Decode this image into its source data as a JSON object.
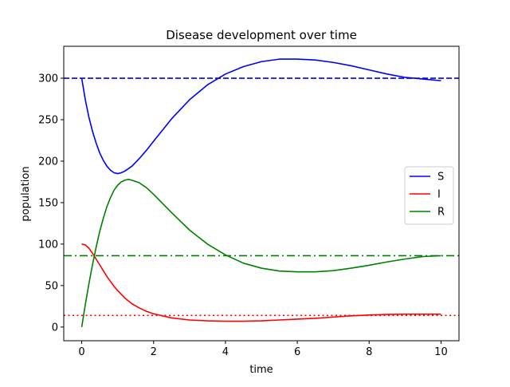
{
  "chart_data": {
    "type": "line",
    "title": "Disease development over time",
    "xlabel": "time",
    "ylabel": "population",
    "xlim": [
      -0.5,
      10.5
    ],
    "ylim": [
      -16.5,
      338.5
    ],
    "xticks": [
      0,
      2,
      4,
      6,
      8,
      10
    ],
    "yticks": [
      0,
      50,
      100,
      150,
      200,
      250,
      300
    ],
    "grid": false,
    "legend_position": "center-right",
    "series": [
      {
        "name": "S",
        "color": "#0000ff",
        "style": "solid",
        "x": [
          0,
          0.1,
          0.2,
          0.3,
          0.4,
          0.5,
          0.6,
          0.7,
          0.8,
          0.9,
          1.0,
          1.1,
          1.2,
          1.4,
          1.6,
          1.8,
          2.0,
          2.5,
          3.0,
          3.5,
          4.0,
          4.5,
          5.0,
          5.5,
          6.0,
          6.5,
          7.0,
          7.5,
          8.0,
          8.5,
          9.0,
          9.5,
          10.0
        ],
        "y": [
          300,
          274,
          253,
          236,
          222,
          210,
          201,
          194,
          189,
          186,
          185,
          186,
          188,
          194,
          203,
          213,
          224,
          251,
          274,
          292,
          305,
          314,
          320,
          323,
          323,
          322,
          319,
          315,
          310,
          305,
          301,
          299,
          297
        ]
      },
      {
        "name": "I",
        "color": "#ff0000",
        "style": "solid",
        "x": [
          0,
          0.1,
          0.2,
          0.3,
          0.4,
          0.5,
          0.6,
          0.7,
          0.8,
          0.9,
          1.0,
          1.2,
          1.4,
          1.6,
          1.8,
          2.0,
          2.5,
          3.0,
          3.5,
          4.0,
          4.5,
          5.0,
          5.5,
          6.0,
          6.5,
          7.0,
          7.5,
          8.0,
          8.5,
          9.0,
          9.5,
          10.0
        ],
        "y": [
          100,
          99,
          95,
          89,
          82,
          75,
          68,
          61,
          55,
          49,
          44,
          35,
          28,
          23,
          19,
          16,
          11,
          8.5,
          7.5,
          7,
          7,
          7.5,
          8.5,
          9.5,
          10.5,
          12,
          13.5,
          14.5,
          15.2,
          15.5,
          15.5,
          15.5
        ]
      },
      {
        "name": "R",
        "color": "#008000",
        "style": "solid",
        "x": [
          0,
          0.1,
          0.2,
          0.3,
          0.4,
          0.5,
          0.6,
          0.7,
          0.8,
          0.9,
          1.0,
          1.1,
          1.2,
          1.3,
          1.4,
          1.6,
          1.8,
          2.0,
          2.5,
          3.0,
          3.5,
          4.0,
          4.5,
          5.0,
          5.5,
          6.0,
          6.5,
          7.0,
          7.5,
          8.0,
          8.5,
          9.0,
          9.5,
          10.0
        ],
        "y": [
          0,
          27,
          52,
          75,
          96,
          115,
          131,
          145,
          156,
          165,
          171,
          175,
          177,
          178,
          177,
          174,
          168,
          160,
          138,
          117,
          100,
          87,
          77,
          71,
          67.5,
          66.5,
          66.5,
          68,
          71,
          74.5,
          78.5,
          82,
          85,
          86
        ]
      }
    ],
    "reference_lines": [
      {
        "y": 300,
        "color": "#0000ff",
        "style": "dashed"
      },
      {
        "y": 86,
        "color": "#008000",
        "style": "dashdot"
      },
      {
        "y": 14,
        "color": "#ff0000",
        "style": "dotted"
      }
    ]
  }
}
